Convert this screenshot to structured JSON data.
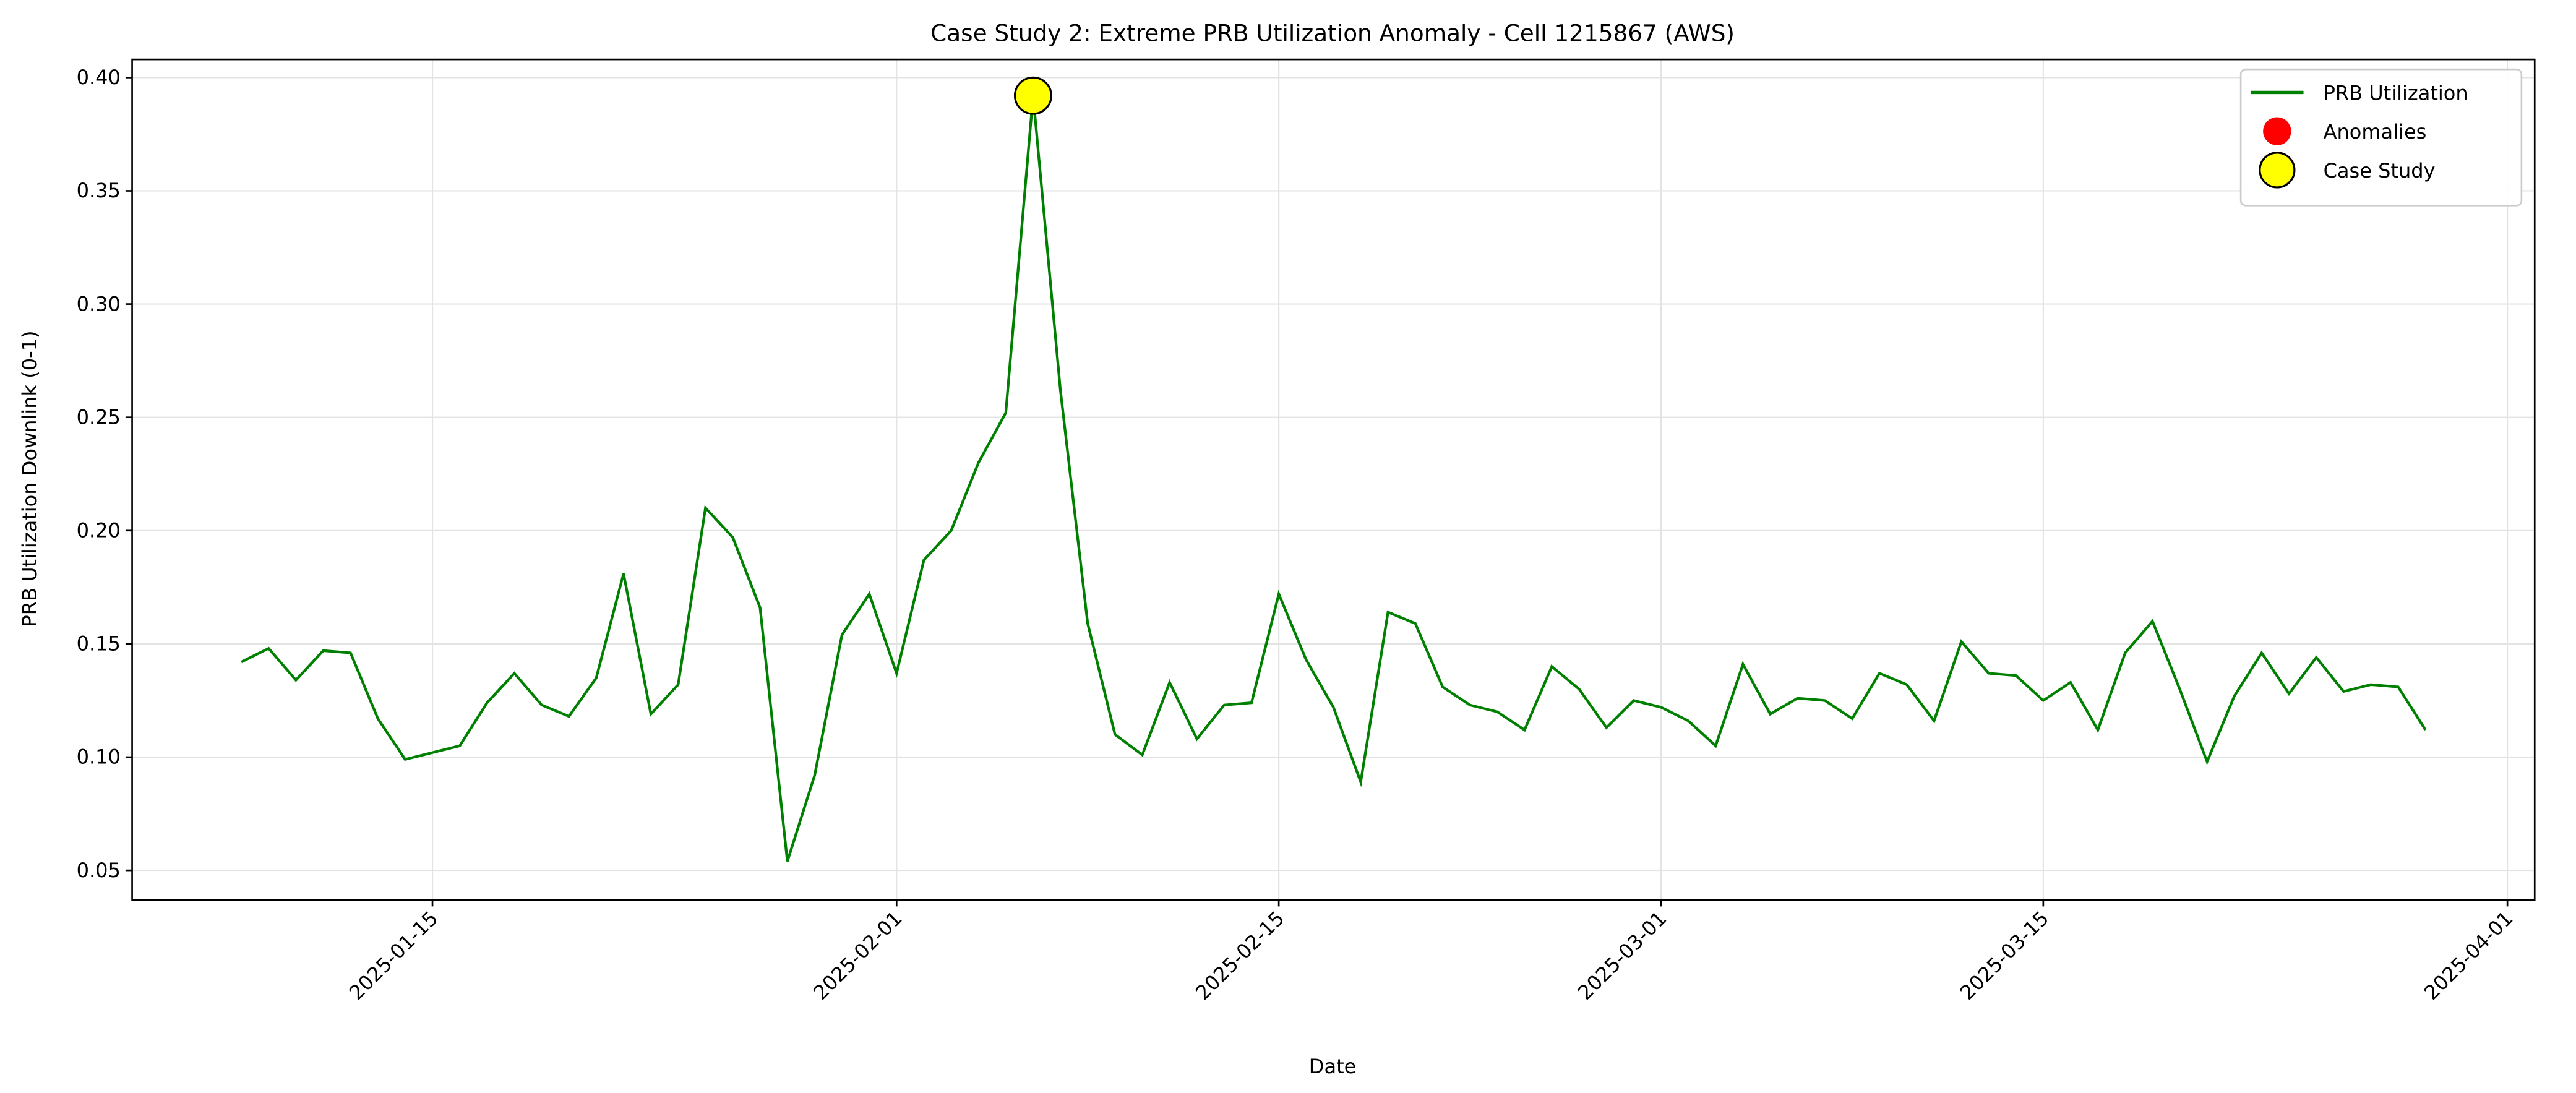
{
  "chart_data": {
    "type": "line",
    "title": "Case Study 2: Extreme PRB Utilization Anomaly - Cell 1215867 (AWS)",
    "x_label": "Date",
    "y_label": "PRB Utilization Downlink (0-1)",
    "grid": true,
    "legend_position": "upper right",
    "xlim": [
      "2025-01-04",
      "2025-04-02"
    ],
    "xticks": [
      "2025-01-15",
      "2025-02-01",
      "2025-02-15",
      "2025-03-01",
      "2025-03-15",
      "2025-04-01"
    ],
    "ylim": [
      0.037,
      0.408
    ],
    "yticks": [
      0.05,
      {
        "value": 0.1,
        "label": "0.10"
      },
      0.15,
      {
        "value": 0.2,
        "label": "0.20"
      },
      0.25,
      {
        "value": 0.3,
        "label": "0.30"
      },
      0.35,
      {
        "value": 0.4,
        "label": "0.40"
      }
    ],
    "series": [
      {
        "name": "PRB Utilization",
        "kind": "line",
        "color": "#008000",
        "x": [
          "2025-01-08",
          "2025-01-09",
          "2025-01-10",
          "2025-01-11",
          "2025-01-12",
          "2025-01-13",
          "2025-01-14",
          "2025-01-15",
          "2025-01-16",
          "2025-01-17",
          "2025-01-18",
          "2025-01-19",
          "2025-01-20",
          "2025-01-21",
          "2025-01-22",
          "2025-01-23",
          "2025-01-24",
          "2025-01-25",
          "2025-01-26",
          "2025-01-27",
          "2025-01-28",
          "2025-01-29",
          "2025-01-30",
          "2025-01-31",
          "2025-02-01",
          "2025-02-02",
          "2025-02-03",
          "2025-02-04",
          "2025-02-05",
          "2025-02-06",
          "2025-02-07",
          "2025-02-08",
          "2025-02-09",
          "2025-02-10",
          "2025-02-11",
          "2025-02-12",
          "2025-02-13",
          "2025-02-14",
          "2025-02-15",
          "2025-02-16",
          "2025-02-17",
          "2025-02-18",
          "2025-02-19",
          "2025-02-20",
          "2025-02-21",
          "2025-02-22",
          "2025-02-23",
          "2025-02-24",
          "2025-02-25",
          "2025-02-26",
          "2025-02-27",
          "2025-02-28",
          "2025-03-01",
          "2025-03-02",
          "2025-03-03",
          "2025-03-04",
          "2025-03-05",
          "2025-03-06",
          "2025-03-07",
          "2025-03-08",
          "2025-03-09",
          "2025-03-10",
          "2025-03-11",
          "2025-03-12",
          "2025-03-13",
          "2025-03-14",
          "2025-03-15",
          "2025-03-16",
          "2025-03-17",
          "2025-03-18",
          "2025-03-19",
          "2025-03-20",
          "2025-03-21",
          "2025-03-22",
          "2025-03-23",
          "2025-03-24",
          "2025-03-25",
          "2025-03-26",
          "2025-03-27",
          "2025-03-28",
          "2025-03-29"
        ],
        "values": [
          0.142,
          0.148,
          0.134,
          0.147,
          0.146,
          0.117,
          0.099,
          0.102,
          0.105,
          0.124,
          0.137,
          0.123,
          0.118,
          0.135,
          0.181,
          0.119,
          0.132,
          0.21,
          0.197,
          0.166,
          0.054,
          0.092,
          0.154,
          0.172,
          0.137,
          0.187,
          0.2,
          0.23,
          0.252,
          0.392,
          0.262,
          0.159,
          0.11,
          0.101,
          0.133,
          0.108,
          0.123,
          0.124,
          0.172,
          0.143,
          0.122,
          0.089,
          0.164,
          0.159,
          0.131,
          0.123,
          0.12,
          0.112,
          0.14,
          0.13,
          0.113,
          0.125,
          0.122,
          0.116,
          0.105,
          0.141,
          0.119,
          0.126,
          0.125,
          0.117,
          0.137,
          0.132,
          0.116,
          0.151,
          0.137,
          0.136,
          0.125,
          0.133,
          0.112,
          0.146,
          0.16,
          0.13,
          0.098,
          0.127,
          0.146,
          0.128,
          0.144,
          0.129,
          0.132,
          0.131,
          0.112
        ]
      },
      {
        "name": "Anomalies",
        "kind": "scatter",
        "color": "#ff0000",
        "x": [],
        "values": []
      },
      {
        "name": "Case Study",
        "kind": "scatter",
        "color": "#ffff00",
        "edgecolor": "#000000",
        "x": [
          "2025-02-06"
        ],
        "values": [
          0.392
        ]
      }
    ]
  }
}
